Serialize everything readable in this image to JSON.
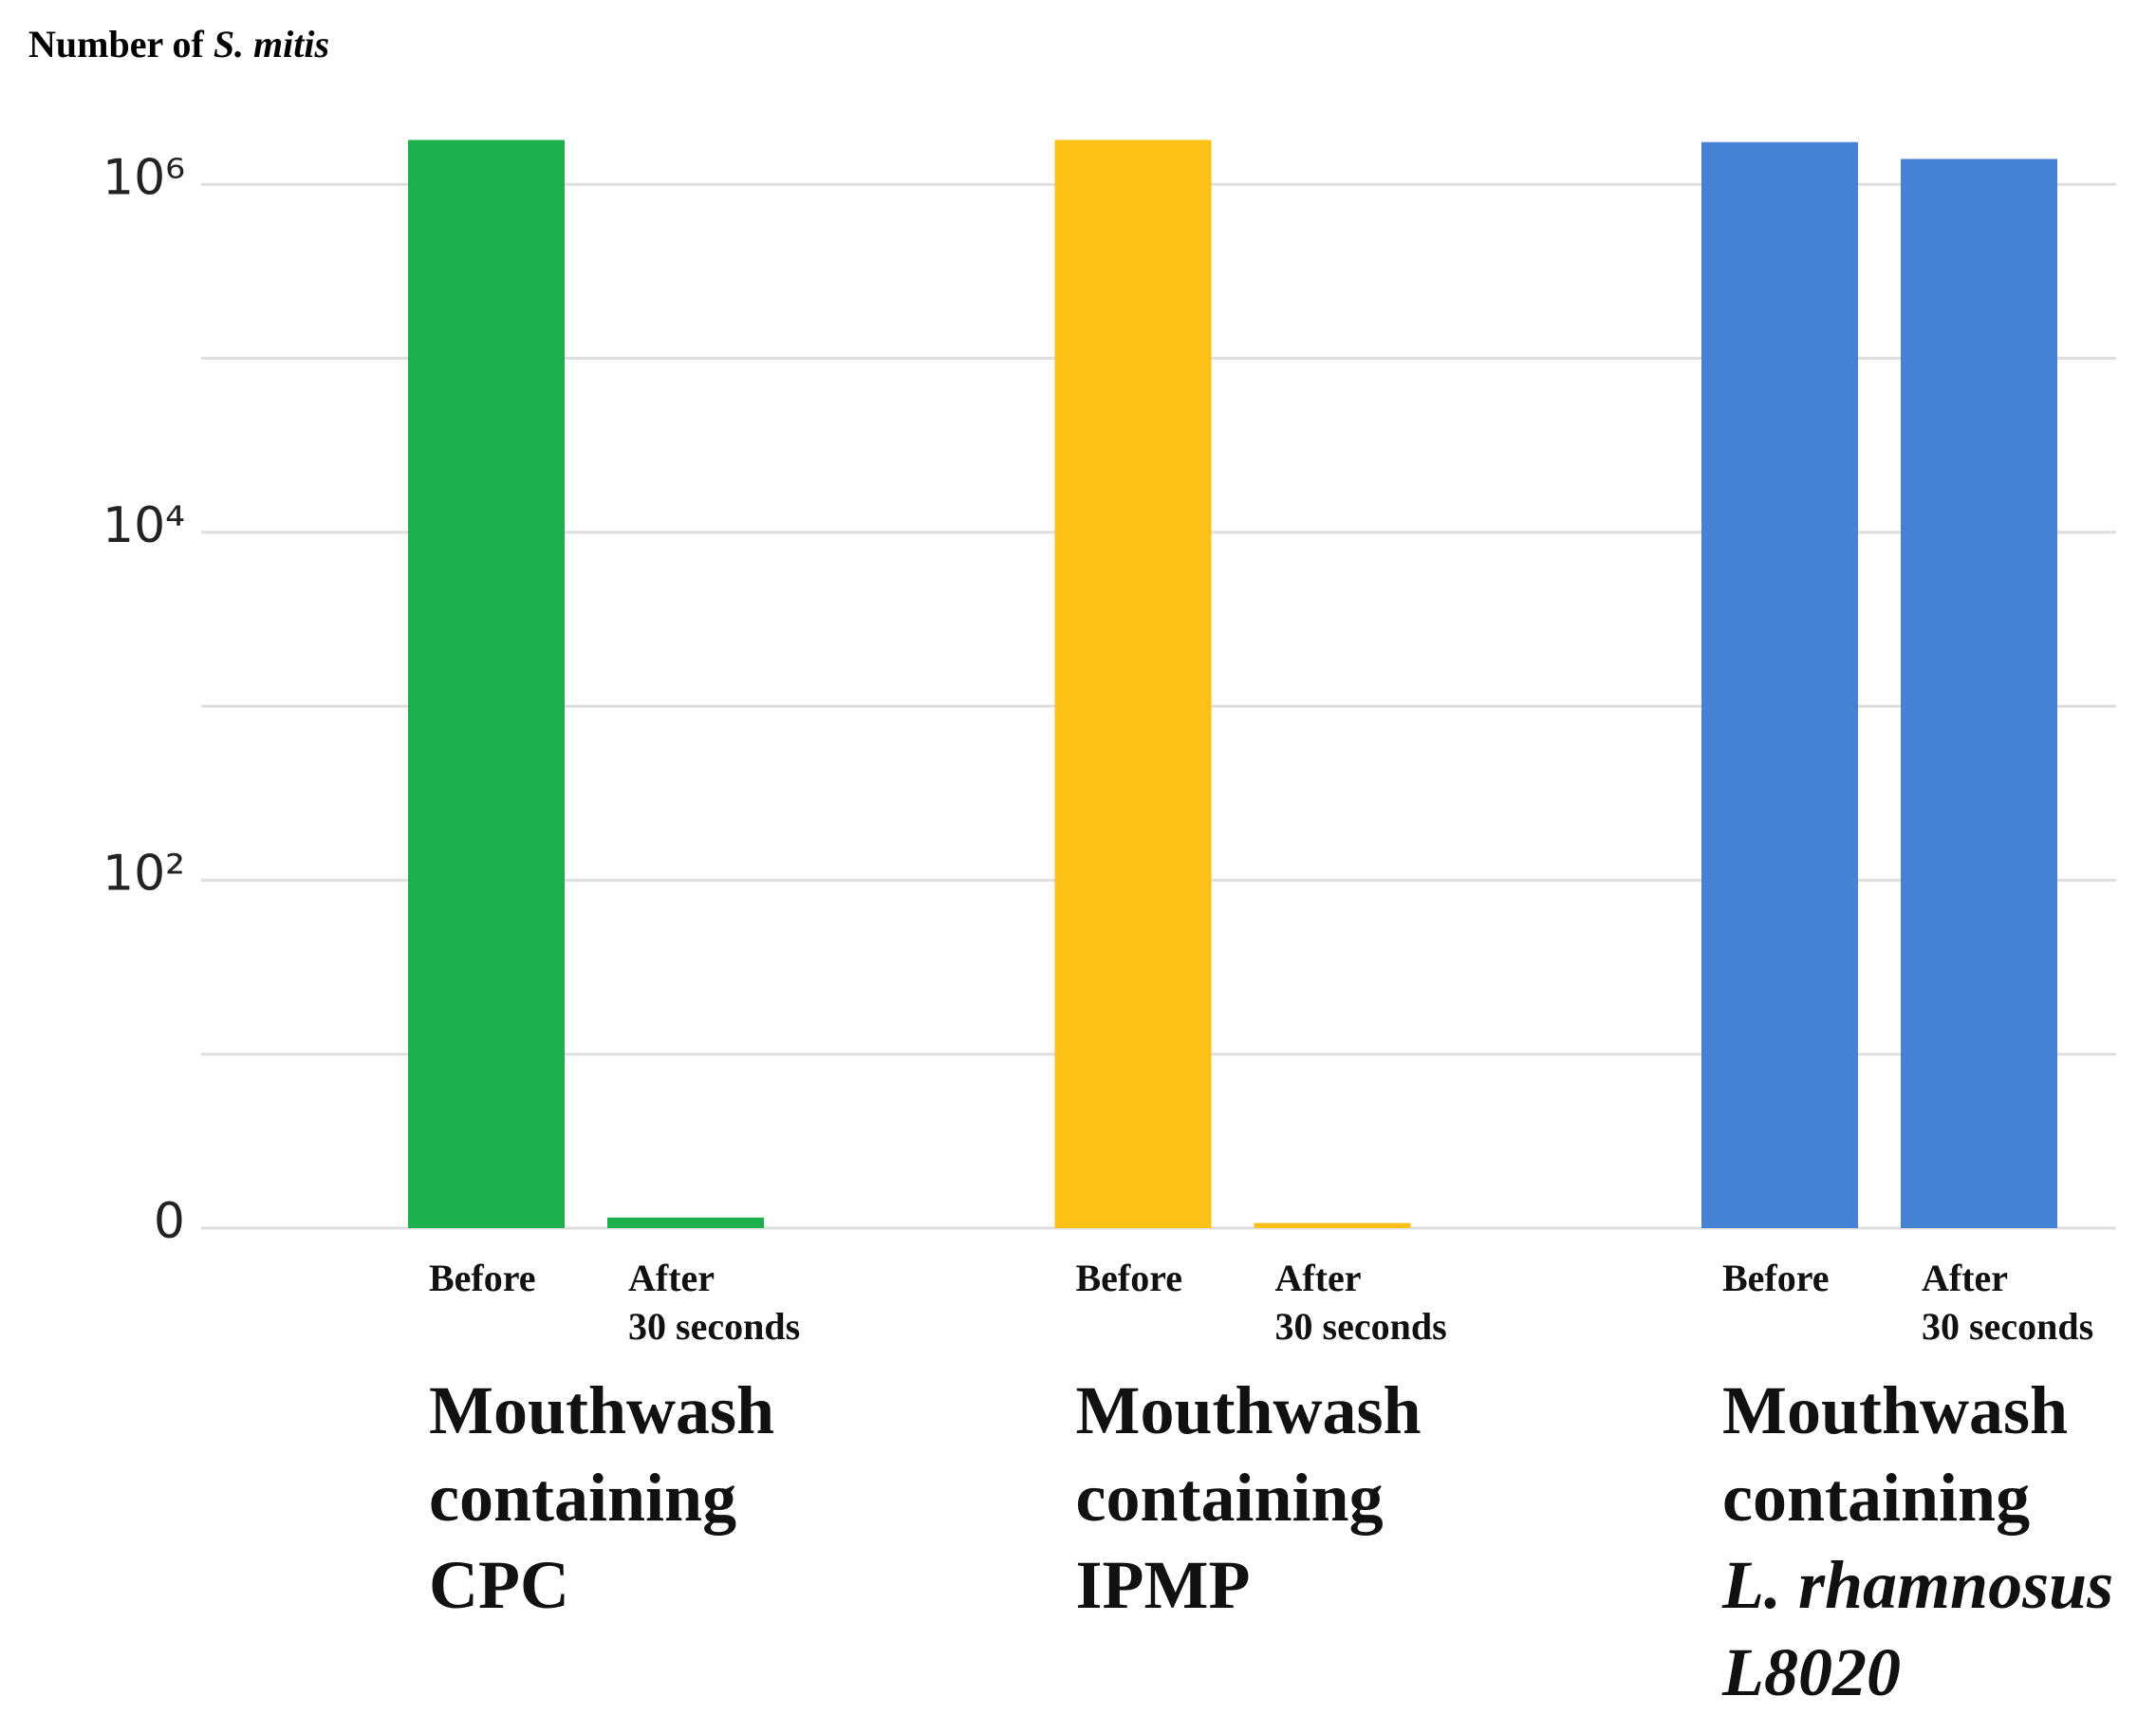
{
  "chart_data": {
    "type": "bar",
    "log_scale": true,
    "y_label": "Number of ",
    "y_label_italic": "S. mitis",
    "ylim": [
      1,
      3800000
    ],
    "yticks": [
      {
        "value": 1,
        "label": "0"
      },
      {
        "value": 100,
        "label": "10²"
      },
      {
        "value": 10000,
        "label": "10⁴"
      },
      {
        "value": 1000000,
        "label": "10⁶"
      }
    ],
    "minor_yticks": [
      10,
      1000,
      100000
    ],
    "grid": true,
    "groups": [
      {
        "name": [
          "Mouthwash",
          "containing",
          "CPC"
        ],
        "italic_lines": [],
        "color": "#1daf4d",
        "categories": [
          [
            "Before"
          ],
          [
            "After",
            "30 seconds"
          ]
        ],
        "values": [
          1800000,
          1.15
        ]
      },
      {
        "name": [
          "Mouthwash",
          "containing",
          "IPMP"
        ],
        "italic_lines": [],
        "color": "#fcc016",
        "categories": [
          [
            "Before"
          ],
          [
            "After",
            "30 seconds"
          ]
        ],
        "values": [
          1800000,
          1.07
        ]
      },
      {
        "name": [
          "Mouthwash",
          "containing",
          "L. rhamnosus",
          "L8020"
        ],
        "italic_lines": [
          2,
          3
        ],
        "color": "#4682d3",
        "categories": [
          [
            "Before"
          ],
          [
            "After",
            "30 seconds"
          ]
        ],
        "values": [
          1750000,
          1400000
        ]
      }
    ]
  }
}
